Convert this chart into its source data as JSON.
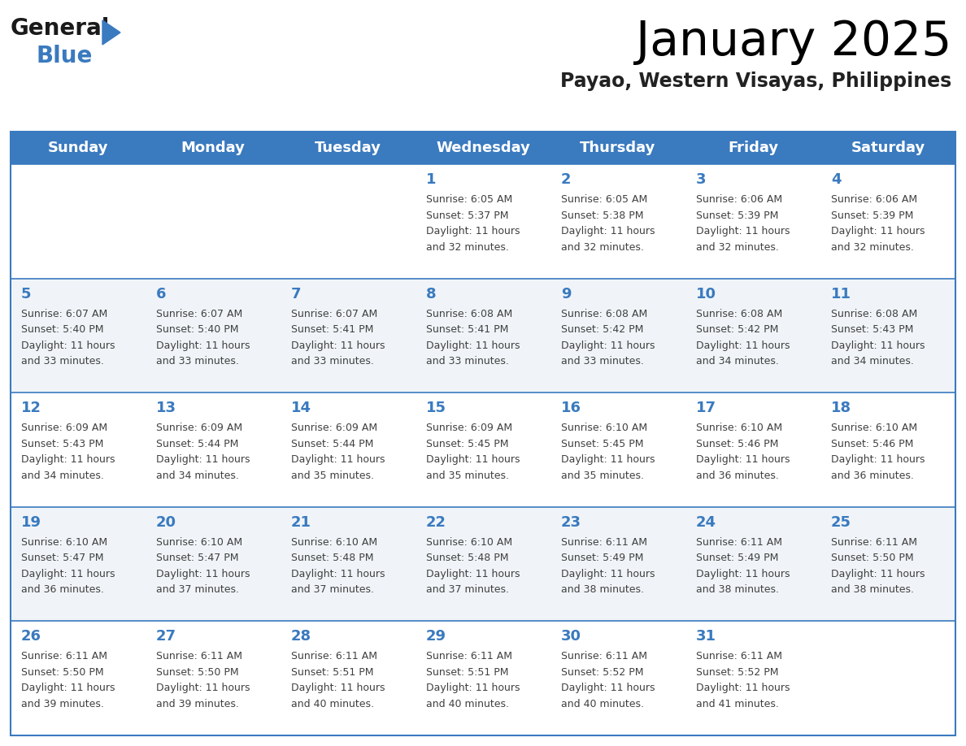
{
  "title": "January 2025",
  "subtitle": "Payao, Western Visayas, Philippines",
  "header_color": "#3a7abf",
  "header_text_color": "#ffffff",
  "days_of_week": [
    "Sunday",
    "Monday",
    "Tuesday",
    "Wednesday",
    "Thursday",
    "Friday",
    "Saturday"
  ],
  "bg_color": "#ffffff",
  "row_colors": [
    "#ffffff",
    "#f0f4f8"
  ],
  "border_color": "#3a7abf",
  "day_num_color": "#3a7abf",
  "text_color": "#404040",
  "weeks": [
    [
      {
        "day": "",
        "sunrise": "",
        "sunset": "",
        "daylight": ""
      },
      {
        "day": "",
        "sunrise": "",
        "sunset": "",
        "daylight": ""
      },
      {
        "day": "",
        "sunrise": "",
        "sunset": "",
        "daylight": ""
      },
      {
        "day": "1",
        "sunrise": "6:05 AM",
        "sunset": "5:37 PM",
        "daylight": "11 hours and 32 minutes."
      },
      {
        "day": "2",
        "sunrise": "6:05 AM",
        "sunset": "5:38 PM",
        "daylight": "11 hours and 32 minutes."
      },
      {
        "day": "3",
        "sunrise": "6:06 AM",
        "sunset": "5:39 PM",
        "daylight": "11 hours and 32 minutes."
      },
      {
        "day": "4",
        "sunrise": "6:06 AM",
        "sunset": "5:39 PM",
        "daylight": "11 hours and 32 minutes."
      }
    ],
    [
      {
        "day": "5",
        "sunrise": "6:07 AM",
        "sunset": "5:40 PM",
        "daylight": "11 hours and 33 minutes."
      },
      {
        "day": "6",
        "sunrise": "6:07 AM",
        "sunset": "5:40 PM",
        "daylight": "11 hours and 33 minutes."
      },
      {
        "day": "7",
        "sunrise": "6:07 AM",
        "sunset": "5:41 PM",
        "daylight": "11 hours and 33 minutes."
      },
      {
        "day": "8",
        "sunrise": "6:08 AM",
        "sunset": "5:41 PM",
        "daylight": "11 hours and 33 minutes."
      },
      {
        "day": "9",
        "sunrise": "6:08 AM",
        "sunset": "5:42 PM",
        "daylight": "11 hours and 33 minutes."
      },
      {
        "day": "10",
        "sunrise": "6:08 AM",
        "sunset": "5:42 PM",
        "daylight": "11 hours and 34 minutes."
      },
      {
        "day": "11",
        "sunrise": "6:08 AM",
        "sunset": "5:43 PM",
        "daylight": "11 hours and 34 minutes."
      }
    ],
    [
      {
        "day": "12",
        "sunrise": "6:09 AM",
        "sunset": "5:43 PM",
        "daylight": "11 hours and 34 minutes."
      },
      {
        "day": "13",
        "sunrise": "6:09 AM",
        "sunset": "5:44 PM",
        "daylight": "11 hours and 34 minutes."
      },
      {
        "day": "14",
        "sunrise": "6:09 AM",
        "sunset": "5:44 PM",
        "daylight": "11 hours and 35 minutes."
      },
      {
        "day": "15",
        "sunrise": "6:09 AM",
        "sunset": "5:45 PM",
        "daylight": "11 hours and 35 minutes."
      },
      {
        "day": "16",
        "sunrise": "6:10 AM",
        "sunset": "5:45 PM",
        "daylight": "11 hours and 35 minutes."
      },
      {
        "day": "17",
        "sunrise": "6:10 AM",
        "sunset": "5:46 PM",
        "daylight": "11 hours and 36 minutes."
      },
      {
        "day": "18",
        "sunrise": "6:10 AM",
        "sunset": "5:46 PM",
        "daylight": "11 hours and 36 minutes."
      }
    ],
    [
      {
        "day": "19",
        "sunrise": "6:10 AM",
        "sunset": "5:47 PM",
        "daylight": "11 hours and 36 minutes."
      },
      {
        "day": "20",
        "sunrise": "6:10 AM",
        "sunset": "5:47 PM",
        "daylight": "11 hours and 37 minutes."
      },
      {
        "day": "21",
        "sunrise": "6:10 AM",
        "sunset": "5:48 PM",
        "daylight": "11 hours and 37 minutes."
      },
      {
        "day": "22",
        "sunrise": "6:10 AM",
        "sunset": "5:48 PM",
        "daylight": "11 hours and 37 minutes."
      },
      {
        "day": "23",
        "sunrise": "6:11 AM",
        "sunset": "5:49 PM",
        "daylight": "11 hours and 38 minutes."
      },
      {
        "day": "24",
        "sunrise": "6:11 AM",
        "sunset": "5:49 PM",
        "daylight": "11 hours and 38 minutes."
      },
      {
        "day": "25",
        "sunrise": "6:11 AM",
        "sunset": "5:50 PM",
        "daylight": "11 hours and 38 minutes."
      }
    ],
    [
      {
        "day": "26",
        "sunrise": "6:11 AM",
        "sunset": "5:50 PM",
        "daylight": "11 hours and 39 minutes."
      },
      {
        "day": "27",
        "sunrise": "6:11 AM",
        "sunset": "5:50 PM",
        "daylight": "11 hours and 39 minutes."
      },
      {
        "day": "28",
        "sunrise": "6:11 AM",
        "sunset": "5:51 PM",
        "daylight": "11 hours and 40 minutes."
      },
      {
        "day": "29",
        "sunrise": "6:11 AM",
        "sunset": "5:51 PM",
        "daylight": "11 hours and 40 minutes."
      },
      {
        "day": "30",
        "sunrise": "6:11 AM",
        "sunset": "5:52 PM",
        "daylight": "11 hours and 40 minutes."
      },
      {
        "day": "31",
        "sunrise": "6:11 AM",
        "sunset": "5:52 PM",
        "daylight": "11 hours and 41 minutes."
      },
      {
        "day": "",
        "sunrise": "",
        "sunset": "",
        "daylight": ""
      }
    ]
  ],
  "logo_general_color": "#1a1a1a",
  "logo_blue_color": "#3a7abf",
  "logo_triangle_color": "#3a7abf",
  "title_fontsize": 42,
  "subtitle_fontsize": 17,
  "header_fontsize": 13,
  "day_num_fontsize": 13,
  "cell_text_fontsize": 9
}
